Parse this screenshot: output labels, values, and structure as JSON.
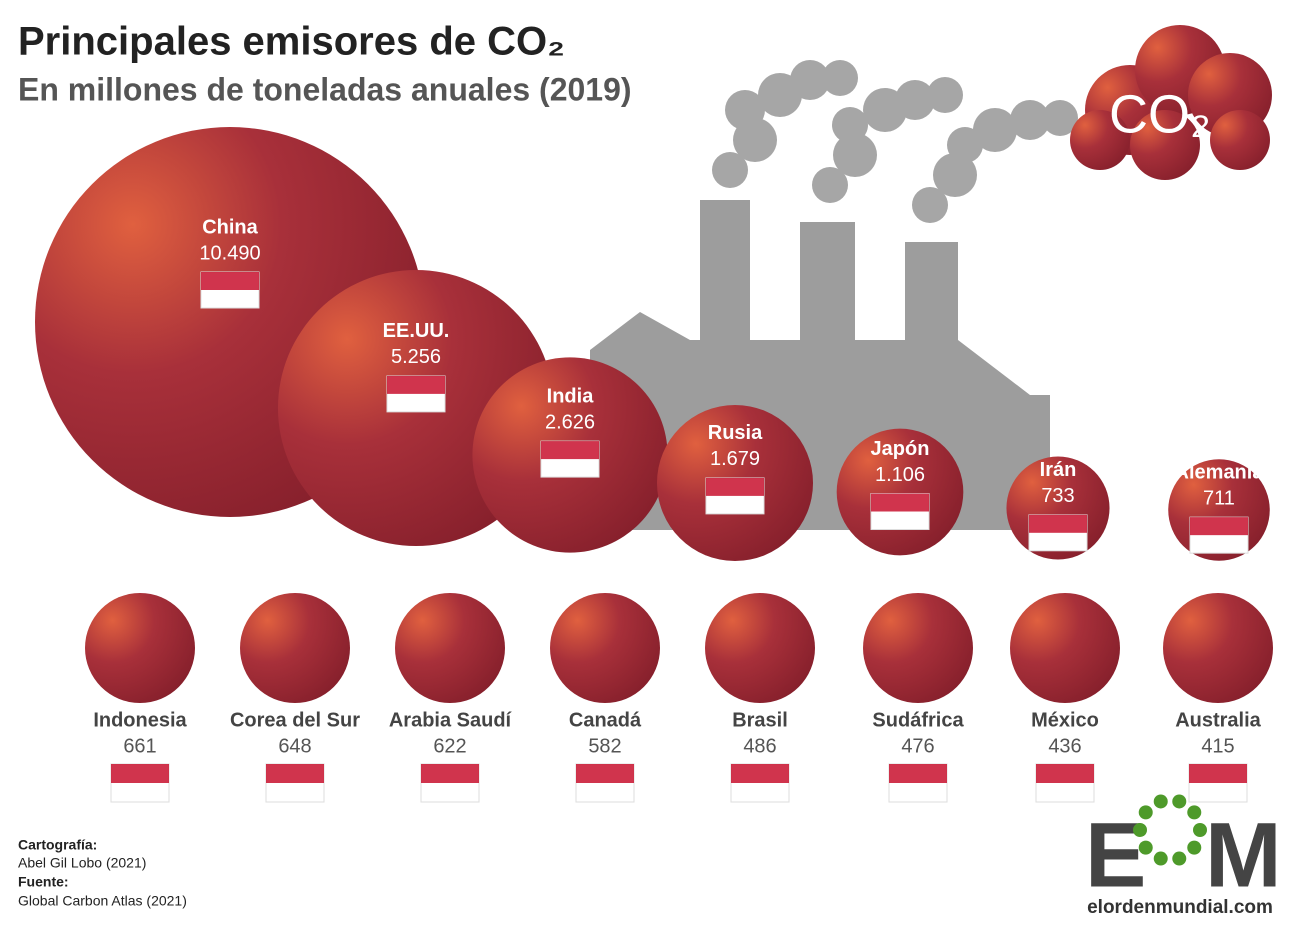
{
  "chart_data": {
    "type": "bubble",
    "title": "Principales emisores de CO₂",
    "subtitle": "En millones de toneladas anuales (2019)",
    "categories": [
      "China",
      "EE.UU.",
      "India",
      "Rusia",
      "Japón",
      "Irán",
      "Alemania",
      "Indonesia",
      "Corea del Sur",
      "Arabia Saudí",
      "Canadá",
      "Brasil",
      "Sudáfrica",
      "México",
      "Australia"
    ],
    "values": [
      10490,
      5256,
      2626,
      1679,
      1106,
      733,
      711,
      661,
      648,
      622,
      582,
      486,
      476,
      436,
      415
    ],
    "value_labels": [
      "10.490",
      "5.256",
      "2.626",
      "1.679",
      "1.106",
      "733",
      "711",
      "661",
      "648",
      "622",
      "582",
      "486",
      "476",
      "436",
      "415"
    ],
    "color": "#a02a34"
  },
  "cloud_label": "CO₂",
  "credits": {
    "map_heading": "Cartografía:",
    "map_author": "Abel Gil Lobo (2021)",
    "source_heading": "Fuente:",
    "source": "Global Carbon Atlas (2021)"
  },
  "logo": {
    "left": "E",
    "right": "M",
    "url": "elordenmundial.com"
  }
}
